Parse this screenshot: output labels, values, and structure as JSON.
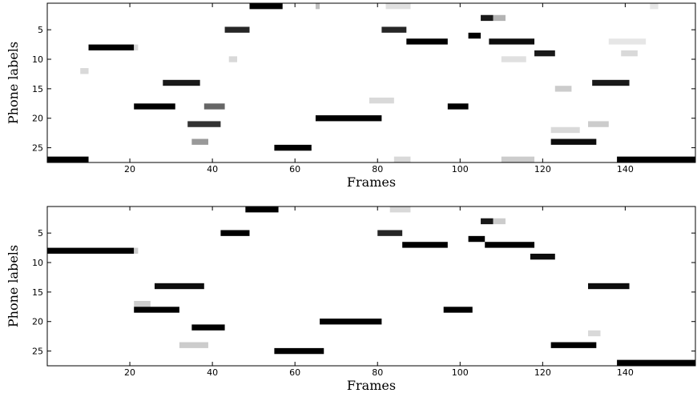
{
  "chart_data": [
    {
      "type": "heatmap",
      "xlabel": "Frames",
      "ylabel": "Phone labels",
      "xlim": [
        0,
        157
      ],
      "ylim": [
        27,
        1
      ],
      "xticks": [
        20,
        40,
        60,
        80,
        100,
        120,
        140
      ],
      "yticks": [
        5,
        10,
        15,
        20,
        25
      ],
      "colormap": "gray (white = 0, black = 1)",
      "segments": [
        {
          "row": 1,
          "start": 49,
          "end": 57,
          "value": 1.0
        },
        {
          "row": 1,
          "start": 65,
          "end": 66,
          "value": 0.25
        },
        {
          "row": 1,
          "start": 82,
          "end": 88,
          "value": 0.12
        },
        {
          "row": 1,
          "start": 146,
          "end": 148,
          "value": 0.1
        },
        {
          "row": 3,
          "start": 105,
          "end": 108,
          "value": 0.9
        },
        {
          "row": 3,
          "start": 108,
          "end": 111,
          "value": 0.3
        },
        {
          "row": 5,
          "start": 43,
          "end": 49,
          "value": 0.85
        },
        {
          "row": 5,
          "start": 81,
          "end": 87,
          "value": 0.85
        },
        {
          "row": 6,
          "start": 102,
          "end": 105,
          "value": 1.0
        },
        {
          "row": 7,
          "start": 87,
          "end": 97,
          "value": 1.0
        },
        {
          "row": 7,
          "start": 107,
          "end": 118,
          "value": 0.95
        },
        {
          "row": 7,
          "start": 136,
          "end": 145,
          "value": 0.1
        },
        {
          "row": 8,
          "start": 10,
          "end": 21,
          "value": 1.0
        },
        {
          "row": 8,
          "start": 21,
          "end": 22,
          "value": 0.15
        },
        {
          "row": 9,
          "start": 118,
          "end": 123,
          "value": 0.9
        },
        {
          "row": 9,
          "start": 139,
          "end": 143,
          "value": 0.15
        },
        {
          "row": 10,
          "start": 44,
          "end": 46,
          "value": 0.15
        },
        {
          "row": 10,
          "start": 110,
          "end": 116,
          "value": 0.12
        },
        {
          "row": 12,
          "start": 8,
          "end": 10,
          "value": 0.15
        },
        {
          "row": 14,
          "start": 28,
          "end": 37,
          "value": 0.9
        },
        {
          "row": 14,
          "start": 132,
          "end": 141,
          "value": 0.9
        },
        {
          "row": 15,
          "start": 123,
          "end": 127,
          "value": 0.2
        },
        {
          "row": 17,
          "start": 78,
          "end": 84,
          "value": 0.15
        },
        {
          "row": 18,
          "start": 21,
          "end": 31,
          "value": 1.0
        },
        {
          "row": 18,
          "start": 38,
          "end": 43,
          "value": 0.6
        },
        {
          "row": 18,
          "start": 97,
          "end": 102,
          "value": 1.0
        },
        {
          "row": 20,
          "start": 65,
          "end": 81,
          "value": 1.0
        },
        {
          "row": 21,
          "start": 34,
          "end": 42,
          "value": 0.8
        },
        {
          "row": 21,
          "start": 131,
          "end": 136,
          "value": 0.2
        },
        {
          "row": 22,
          "start": 122,
          "end": 129,
          "value": 0.15
        },
        {
          "row": 24,
          "start": 35,
          "end": 39,
          "value": 0.4
        },
        {
          "row": 24,
          "start": 122,
          "end": 133,
          "value": 0.95
        },
        {
          "row": 25,
          "start": 55,
          "end": 64,
          "value": 1.0
        },
        {
          "row": 27,
          "start": 0,
          "end": 10,
          "value": 1.0
        },
        {
          "row": 27,
          "start": 84,
          "end": 88,
          "value": 0.15
        },
        {
          "row": 27,
          "start": 110,
          "end": 118,
          "value": 0.2
        },
        {
          "row": 27,
          "start": 138,
          "end": 157,
          "value": 1.0
        }
      ]
    },
    {
      "type": "heatmap",
      "xlabel": "Frames",
      "ylabel": "Phone labels",
      "xlim": [
        0,
        157
      ],
      "ylim": [
        27,
        1
      ],
      "xticks": [
        20,
        40,
        60,
        80,
        100,
        120,
        140
      ],
      "yticks": [
        5,
        10,
        15,
        20,
        25
      ],
      "colormap": "gray (white = 0, black = 1)",
      "segments": [
        {
          "row": 1,
          "start": 48,
          "end": 56,
          "value": 1.0
        },
        {
          "row": 1,
          "start": 83,
          "end": 88,
          "value": 0.15
        },
        {
          "row": 3,
          "start": 105,
          "end": 108,
          "value": 0.9
        },
        {
          "row": 3,
          "start": 108,
          "end": 111,
          "value": 0.2
        },
        {
          "row": 5,
          "start": 42,
          "end": 49,
          "value": 1.0
        },
        {
          "row": 5,
          "start": 80,
          "end": 86,
          "value": 0.85
        },
        {
          "row": 6,
          "start": 102,
          "end": 106,
          "value": 1.0
        },
        {
          "row": 7,
          "start": 86,
          "end": 97,
          "value": 1.0
        },
        {
          "row": 7,
          "start": 106,
          "end": 118,
          "value": 1.0
        },
        {
          "row": 8,
          "start": 0,
          "end": 21,
          "value": 1.0
        },
        {
          "row": 8,
          "start": 21,
          "end": 22,
          "value": 0.2
        },
        {
          "row": 9,
          "start": 117,
          "end": 123,
          "value": 0.95
        },
        {
          "row": 14,
          "start": 26,
          "end": 38,
          "value": 0.95
        },
        {
          "row": 14,
          "start": 131,
          "end": 141,
          "value": 0.95
        },
        {
          "row": 17,
          "start": 21,
          "end": 25,
          "value": 0.2
        },
        {
          "row": 18,
          "start": 21,
          "end": 32,
          "value": 1.0
        },
        {
          "row": 18,
          "start": 96,
          "end": 103,
          "value": 1.0
        },
        {
          "row": 20,
          "start": 66,
          "end": 81,
          "value": 1.0
        },
        {
          "row": 21,
          "start": 35,
          "end": 43,
          "value": 1.0
        },
        {
          "row": 22,
          "start": 131,
          "end": 134,
          "value": 0.15
        },
        {
          "row": 24,
          "start": 32,
          "end": 39,
          "value": 0.2
        },
        {
          "row": 24,
          "start": 122,
          "end": 133,
          "value": 1.0
        },
        {
          "row": 25,
          "start": 55,
          "end": 67,
          "value": 1.0
        },
        {
          "row": 27,
          "start": 138,
          "end": 157,
          "value": 1.0
        }
      ]
    }
  ]
}
